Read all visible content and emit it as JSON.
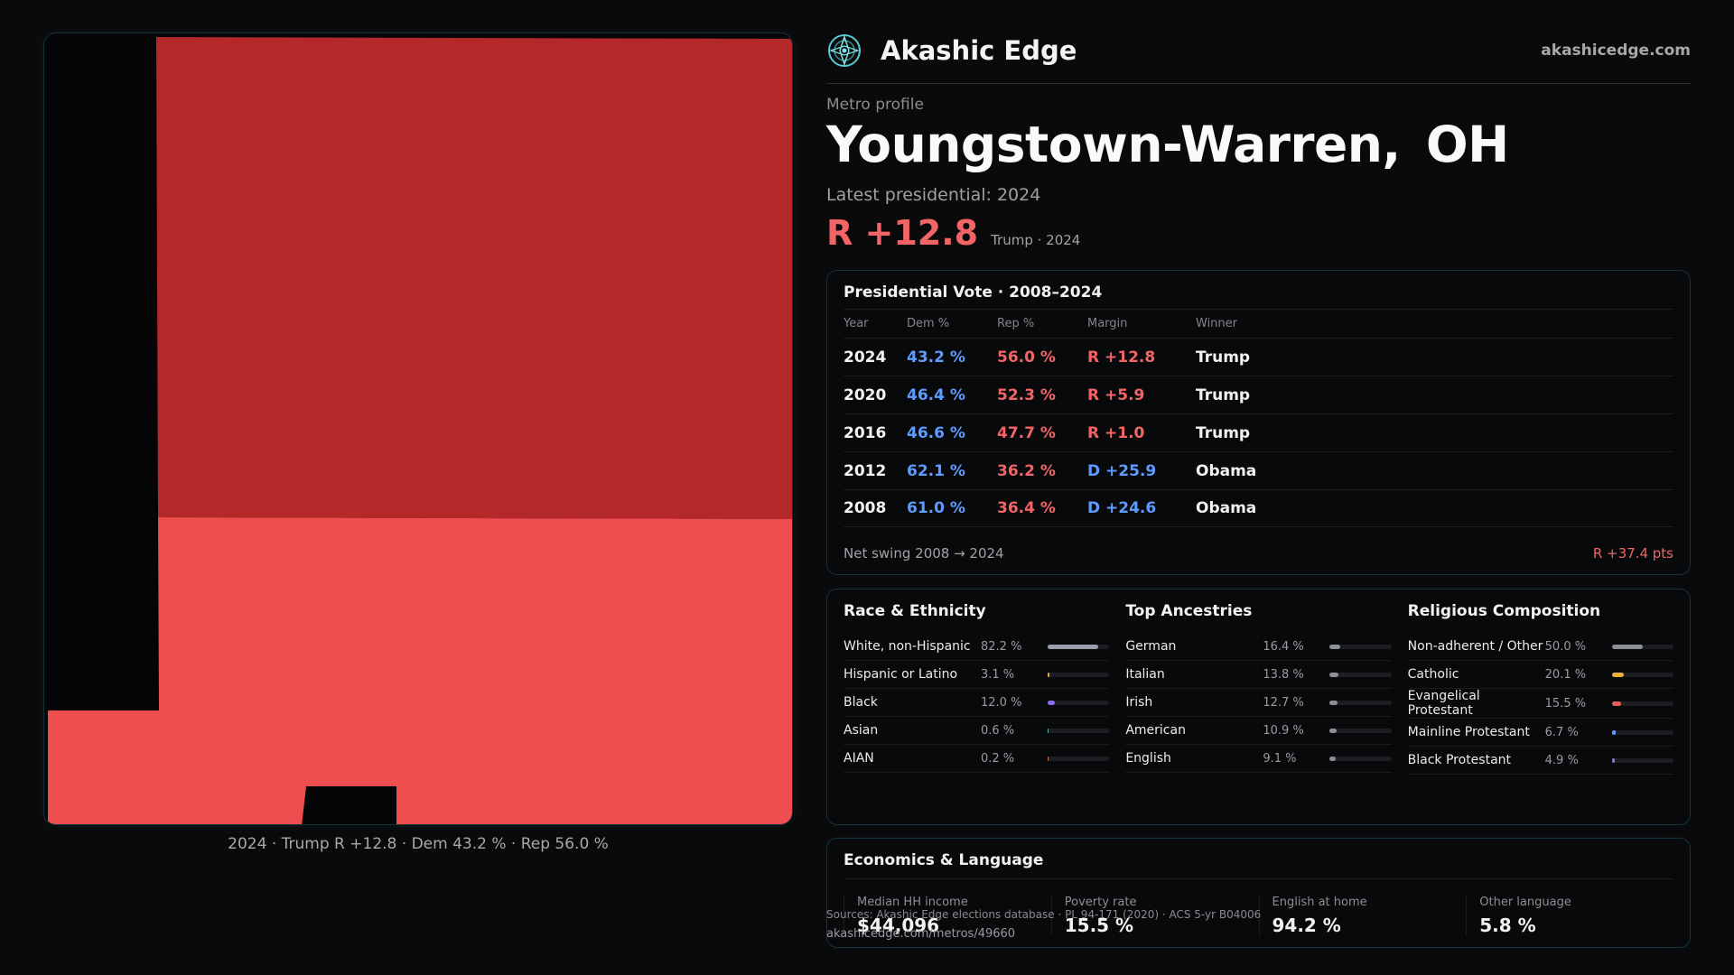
{
  "map": {
    "caption": "2024 · Trump R +12.8 · Dem 43.2 % · Rep 56.0 %",
    "colors": {
      "dark_red": "#b42829",
      "light_red": "#ef4e4e",
      "background": "#050507"
    }
  },
  "header": {
    "brand": "Akashic Edge",
    "url": "akashicedge.com",
    "logo_icon": "compass-mandala-icon"
  },
  "profile": {
    "kicker": "Metro profile",
    "city": "Youngstown-Warren,",
    "state": "OH",
    "latest_label": "Latest presidential: 2024",
    "margin": "R +12.8",
    "margin_sub": "Trump · 2024"
  },
  "vote": {
    "title": "Presidential Vote · 2008–2024",
    "headers": [
      "Year",
      "Dem %",
      "Rep %",
      "Margin",
      "Winner"
    ],
    "rows": [
      {
        "year": "2024",
        "dem": "43.2 %",
        "rep": "56.0 %",
        "margin": "R +12.8",
        "party": "R",
        "winner": "Trump"
      },
      {
        "year": "2020",
        "dem": "46.4 %",
        "rep": "52.3 %",
        "margin": "R +5.9",
        "party": "R",
        "winner": "Trump"
      },
      {
        "year": "2016",
        "dem": "46.6 %",
        "rep": "47.7 %",
        "margin": "R +1.0",
        "party": "R",
        "winner": "Trump"
      },
      {
        "year": "2012",
        "dem": "62.1 %",
        "rep": "36.2 %",
        "margin": "D +25.9",
        "party": "D",
        "winner": "Obama"
      },
      {
        "year": "2008",
        "dem": "61.0 %",
        "rep": "36.4 %",
        "margin": "D +24.6",
        "party": "D",
        "winner": "Obama"
      }
    ],
    "swing_label": "Net swing 2008 → 2024",
    "swing_value": "R +37.4 pts"
  },
  "race": {
    "title": "Race & Ethnicity",
    "rows": [
      {
        "label": "White, non-Hispanic",
        "pct": "82.2 %",
        "value": 82.2,
        "color": "#9aa0ab"
      },
      {
        "label": "Hispanic or Latino",
        "pct": "3.1 %",
        "value": 3.1,
        "color": "#e8a33a"
      },
      {
        "label": "Black",
        "pct": "12.0 %",
        "value": 12.0,
        "color": "#8a6cf0"
      },
      {
        "label": "Asian",
        "pct": "0.6 %",
        "value": 0.6,
        "color": "#3fb9a8"
      },
      {
        "label": "AIAN",
        "pct": "0.2 %",
        "value": 0.2,
        "color": "#c07050"
      }
    ]
  },
  "ancestry": {
    "title": "Top Ancestries",
    "rows": [
      {
        "label": "German",
        "pct": "16.4 %",
        "value": 16.4,
        "color": "#8e9099"
      },
      {
        "label": "Italian",
        "pct": "13.8 %",
        "value": 13.8,
        "color": "#8e9099"
      },
      {
        "label": "Irish",
        "pct": "12.7 %",
        "value": 12.7,
        "color": "#8e9099"
      },
      {
        "label": "American",
        "pct": "10.9 %",
        "value": 10.9,
        "color": "#8e9099"
      },
      {
        "label": "English",
        "pct": "9.1 %",
        "value": 9.1,
        "color": "#8e9099"
      }
    ]
  },
  "religion": {
    "title": "Religious Composition",
    "rows": [
      {
        "label": "Non-adherent / Other",
        "pct": "50.0 %",
        "value": 50.0,
        "color": "#8e9099"
      },
      {
        "label": "Catholic",
        "pct": "20.1 %",
        "value": 20.1,
        "color": "#e8b43a"
      },
      {
        "label": "Evangelical Protestant",
        "pct": "15.5 %",
        "value": 15.5,
        "color": "#ec5b5b"
      },
      {
        "label": "Mainline Protestant",
        "pct": "6.7 %",
        "value": 6.7,
        "color": "#5f9bff"
      },
      {
        "label": "Black Protestant",
        "pct": "4.9 %",
        "value": 4.9,
        "color": "#8a6cf0"
      }
    ]
  },
  "economics": {
    "title": "Economics & Language",
    "items": [
      {
        "label": "Median HH income",
        "value": "$44,096"
      },
      {
        "label": "Poverty rate",
        "value": "15.5 %"
      },
      {
        "label": "English at home",
        "value": "94.2 %"
      },
      {
        "label": "Other language",
        "value": "5.8 %"
      }
    ]
  },
  "footer": {
    "sources": "Sources: Akashic Edge elections database · PL 94-171 (2020) · ACS 5-yr B04006",
    "url": "akashicedge.com/metros/49660"
  }
}
